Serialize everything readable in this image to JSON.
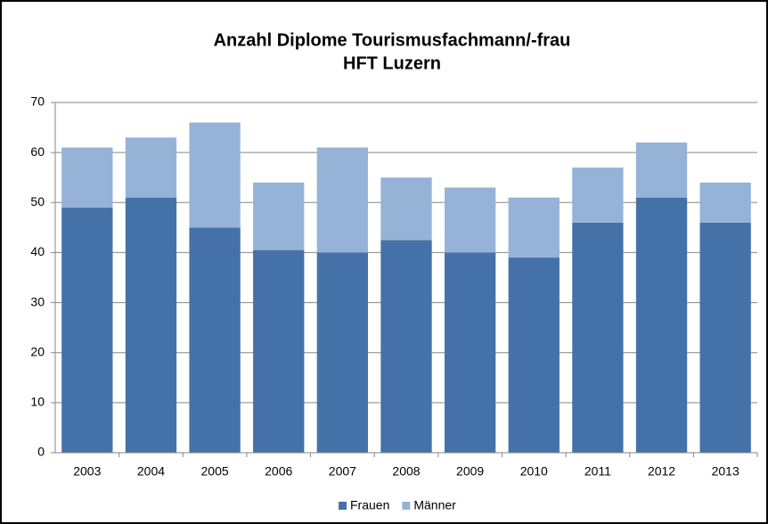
{
  "chart_data": {
    "type": "stacked_bar",
    "title": "Anzahl Diplome Tourismusfachmann/-frau",
    "subtitle": "HFT Luzern",
    "categories": [
      "2003",
      "2004",
      "2005",
      "2006",
      "2007",
      "2008",
      "2009",
      "2010",
      "2011",
      "2012",
      "2013"
    ],
    "series": [
      {
        "name": "Frauen",
        "color": "#4472a8",
        "values": [
          49,
          51,
          45,
          40.5,
          40,
          42.5,
          40,
          39,
          46,
          51,
          46
        ]
      },
      {
        "name": "Männer",
        "color": "#95b3d7",
        "values": [
          12,
          12,
          21,
          13.5,
          21,
          12.5,
          13,
          12,
          11,
          11,
          8
        ]
      }
    ],
    "ylim": [
      0,
      70
    ],
    "yticks": [
      0,
      10,
      20,
      30,
      40,
      50,
      60,
      70
    ],
    "grid": true,
    "legend": "bottom"
  }
}
